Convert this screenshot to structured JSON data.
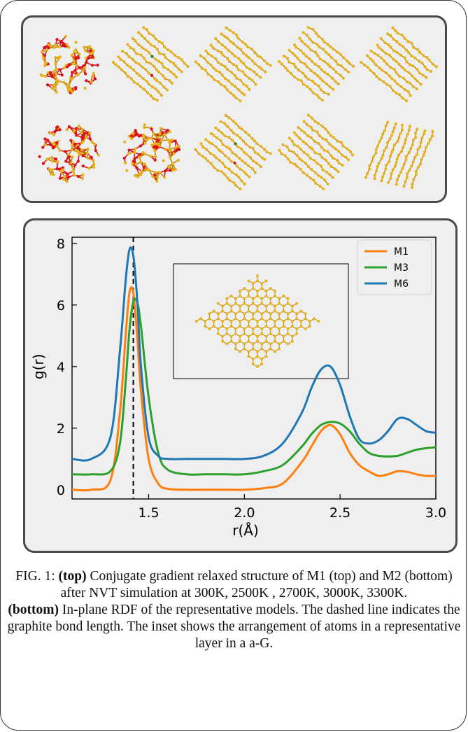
{
  "caption": {
    "fig_label": "FIG. 1:",
    "top_tag": "(top)",
    "top_text": "Conjugate gradient relaxed structure of M1 (top) and M2 (bottom) after NVT simulation at 300K, 2500K , 2700K, 3000K, 3300K.",
    "bottom_tag": "(bottom)",
    "bottom_text": "In-plane RDF of the representative models. The dashed line indicates the graphite bond length. The inset shows the arrangement of atoms in a representative layer in a a-G."
  },
  "structures": {
    "colors": {
      "carbon": "#e8b21c",
      "carbon_bond": "#b8860b",
      "defect": "#d8141b",
      "other": "#1f7a2a"
    },
    "rows": [
      {
        "model": "M1",
        "panels": [
          "disordered",
          "layered-defect",
          "layered",
          "layered",
          "layered"
        ]
      },
      {
        "model": "M2",
        "panels": [
          "disordered",
          "disordered",
          "layered-defect",
          "layered",
          "layered-curved"
        ]
      }
    ]
  },
  "chart_data": {
    "type": "line",
    "xlabel": "r(Å)",
    "ylabel": "g(r)",
    "xlim": [
      1.1,
      3.0
    ],
    "ylim": [
      -0.3,
      8.2
    ],
    "xticks": [
      "1.5",
      "2.0",
      "2.5",
      "3.0"
    ],
    "xtick_values": [
      1.5,
      2.0,
      2.5,
      3.0
    ],
    "yticks": [
      "0",
      "2",
      "4",
      "6",
      "8"
    ],
    "ytick_values": [
      0,
      2,
      4,
      6,
      8
    ],
    "vline": 1.42,
    "legend_position": "top-right",
    "x": [
      1.1,
      1.2,
      1.3,
      1.35,
      1.38,
      1.4,
      1.42,
      1.44,
      1.46,
      1.5,
      1.55,
      1.6,
      1.7,
      1.8,
      1.9,
      2.0,
      2.1,
      2.2,
      2.3,
      2.35,
      2.4,
      2.45,
      2.5,
      2.55,
      2.6,
      2.65,
      2.7,
      2.75,
      2.8,
      2.85,
      2.9,
      2.95,
      3.0
    ],
    "series": [
      {
        "name": "M1",
        "color": "#ff7f0e",
        "values": [
          0.0,
          0.0,
          0.3,
          2.5,
          5.0,
          6.4,
          6.4,
          5.0,
          3.2,
          1.0,
          0.2,
          0.03,
          0.0,
          0.0,
          0.0,
          0.0,
          0.05,
          0.2,
          0.9,
          1.4,
          1.9,
          2.1,
          1.8,
          1.2,
          0.8,
          0.6,
          0.45,
          0.5,
          0.6,
          0.58,
          0.5,
          0.45,
          0.45
        ]
      },
      {
        "name": "M3",
        "color": "#2ca02c",
        "values": [
          0.5,
          0.5,
          0.6,
          1.5,
          3.5,
          5.2,
          6.1,
          6.1,
          5.3,
          3.0,
          1.2,
          0.65,
          0.5,
          0.5,
          0.5,
          0.5,
          0.6,
          0.8,
          1.4,
          1.8,
          2.1,
          2.2,
          2.15,
          1.9,
          1.5,
          1.2,
          1.1,
          1.08,
          1.1,
          1.2,
          1.3,
          1.35,
          1.38
        ]
      },
      {
        "name": "M6",
        "color": "#1f77b4",
        "values": [
          1.0,
          1.0,
          1.7,
          4.5,
          6.8,
          7.8,
          7.6,
          6.2,
          4.0,
          1.7,
          1.1,
          1.0,
          1.0,
          1.0,
          1.0,
          1.0,
          1.1,
          1.5,
          2.5,
          3.3,
          3.9,
          4.0,
          3.4,
          2.4,
          1.65,
          1.5,
          1.6,
          1.9,
          2.3,
          2.3,
          2.1,
          1.9,
          1.85
        ]
      }
    ]
  }
}
